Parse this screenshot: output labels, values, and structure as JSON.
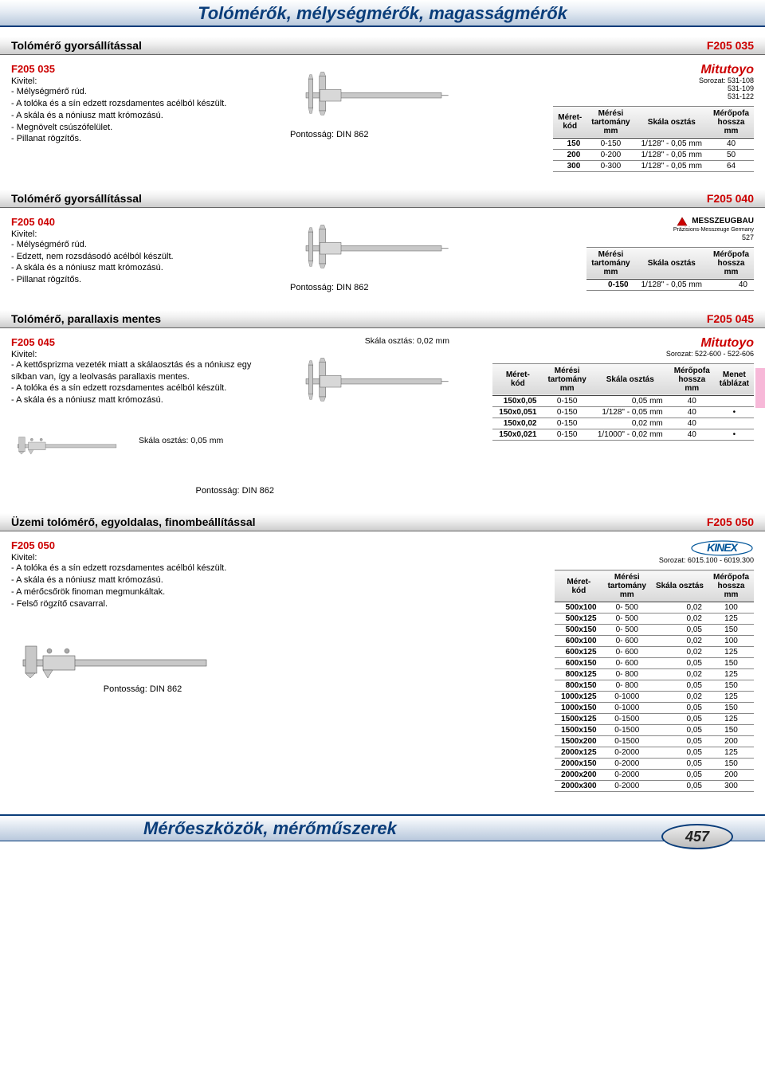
{
  "header_title": "Tolómérők, mélységmérők, magasságmérők",
  "footer_title": "Mérőeszközök, mérőműszerek",
  "page_number": "457",
  "sections": [
    {
      "title": "Tolómérő gyorsállítással",
      "code": "F205 035",
      "product_code": "F205 035",
      "kivitel": "Kivitel:",
      "bullets": [
        "- Mélységmérő rúd.",
        "- A tolóka és a sín edzett rozsdamentes acélból készült.",
        "- A skála és a nóniusz matt krómozású.",
        "- Megnövelt csúszófelület.",
        "- Pillanat rögzítős."
      ],
      "pontossag": "Pontosság: DIN 862",
      "brand": {
        "type": "mitutoyo",
        "name": "Mitutoyo",
        "sorozat": "Sorozat: 531-108\n531-109\n531-122"
      },
      "table": {
        "headers": [
          "Méret-\nkód",
          "Mérési\ntartomány\nmm",
          "Skála osztás",
          "Mérőpofa\nhossza\nmm"
        ],
        "rows": [
          [
            "150",
            "0-150",
            "1/128\" - 0,05 mm",
            "40"
          ],
          [
            "200",
            "0-200",
            "1/128\" - 0,05 mm",
            "50"
          ],
          [
            "300",
            "0-300",
            "1/128\" - 0,05 mm",
            "64"
          ]
        ]
      }
    },
    {
      "title": "Tolómérő gyorsállítással",
      "code": "F205 040",
      "product_code": "F205 040",
      "kivitel": "Kivitel:",
      "bullets": [
        "- Mélységmérő rúd.",
        "- Edzett, nem rozsdásodó acélból készült.",
        "- A skála és a nóniusz matt krómozású.",
        "- Pillanat rögzítős."
      ],
      "pontossag": "Pontosság: DIN 862",
      "brand": {
        "type": "messzeugbau",
        "name": "MESSZEUGBAU",
        "sorozat": "527",
        "sub": "Präzisions-Messzeuge Germany"
      },
      "table": {
        "headers": [
          "Mérési\ntartomány\nmm",
          "Skála osztás",
          "Mérőpofa\nhossza\nmm"
        ],
        "rows": [
          [
            "0-150",
            "1/128\" - 0,05 mm",
            "40"
          ]
        ]
      }
    },
    {
      "title": "Tolómérő, parallaxis mentes",
      "code": "F205 045",
      "product_code": "F205 045",
      "kivitel": "Kivitel:",
      "bullets": [
        "- A kettősprizma vezeték miatt a skálaosztás és a nóniusz egy síkban van, így a leolvasás parallaxis mentes.",
        "- A tolóka és a sín edzett rozsdamentes acélból készült.",
        "- A skála és a nóniusz matt krómozású."
      ],
      "pontossag": "Pontosság: DIN 862",
      "skala_note_1": "Skála osztás: 0,02 mm",
      "skala_note_2": "Skála osztás: 0,05 mm",
      "brand": {
        "type": "mitutoyo",
        "name": "Mitutoyo",
        "sorozat": "Sorozat: 522-600 - 522-606"
      },
      "table": {
        "headers": [
          "Méret-\nkód",
          "Mérési\ntartomány\nmm",
          "Skála osztás",
          "Mérőpofa\nhossza\nmm",
          "Menet\ntáblázat"
        ],
        "rows": [
          [
            "150x0,05",
            "0-150",
            "0,05 mm",
            "40",
            ""
          ],
          [
            "150x0,051",
            "0-150",
            "1/128\" - 0,05 mm",
            "40",
            "•"
          ],
          [
            "150x0,02",
            "0-150",
            "0,02 mm",
            "40",
            ""
          ],
          [
            "150x0,021",
            "0-150",
            "1/1000\" - 0,02 mm",
            "40",
            "•"
          ]
        ]
      }
    },
    {
      "title": "Üzemi tolómérő, egyoldalas, finombeállítással",
      "code": "F205 050",
      "product_code": "F205 050",
      "kivitel": "Kivitel:",
      "bullets": [
        "- A tolóka és a sín edzett rozsdamentes acélból készült.",
        "- A skála és a nóniusz matt krómozású.",
        "- A mérőcsőrök finoman megmunkáltak.",
        "- Felső rögzítő csavarral."
      ],
      "pontossag": "Pontosság: DIN 862",
      "brand": {
        "type": "kinex",
        "name": "KINEX",
        "sorozat": "Sorozat: 6015.100 - 6019.300"
      },
      "table": {
        "headers": [
          "Méret-\nkód",
          "Mérési\ntartomány\nmm",
          "Skála osztás",
          "Mérőpofa\nhossza\nmm"
        ],
        "rows": [
          [
            "500x100",
            "0-  500",
            "0,02",
            "100"
          ],
          [
            "500x125",
            "0-  500",
            "0,02",
            "125"
          ],
          [
            "500x150",
            "0-  500",
            "0,05",
            "150"
          ],
          [
            "600x100",
            "0-  600",
            "0,02",
            "100"
          ],
          [
            "600x125",
            "0-  600",
            "0,02",
            "125"
          ],
          [
            "600x150",
            "0-  600",
            "0,05",
            "150"
          ],
          [
            "800x125",
            "0-  800",
            "0,02",
            "125"
          ],
          [
            "800x150",
            "0-  800",
            "0,05",
            "150"
          ],
          [
            "1000x125",
            "0-1000",
            "0,02",
            "125"
          ],
          [
            "1000x150",
            "0-1000",
            "0,05",
            "150"
          ],
          [
            "1500x125",
            "0-1500",
            "0,05",
            "125"
          ],
          [
            "1500x150",
            "0-1500",
            "0,05",
            "150"
          ],
          [
            "1500x200",
            "0-1500",
            "0,05",
            "200"
          ],
          [
            "2000x125",
            "0-2000",
            "0,05",
            "125"
          ],
          [
            "2000x150",
            "0-2000",
            "0,05",
            "150"
          ],
          [
            "2000x200",
            "0-2000",
            "0,05",
            "200"
          ],
          [
            "2000x300",
            "0-2000",
            "0,05",
            "300"
          ]
        ]
      }
    }
  ]
}
